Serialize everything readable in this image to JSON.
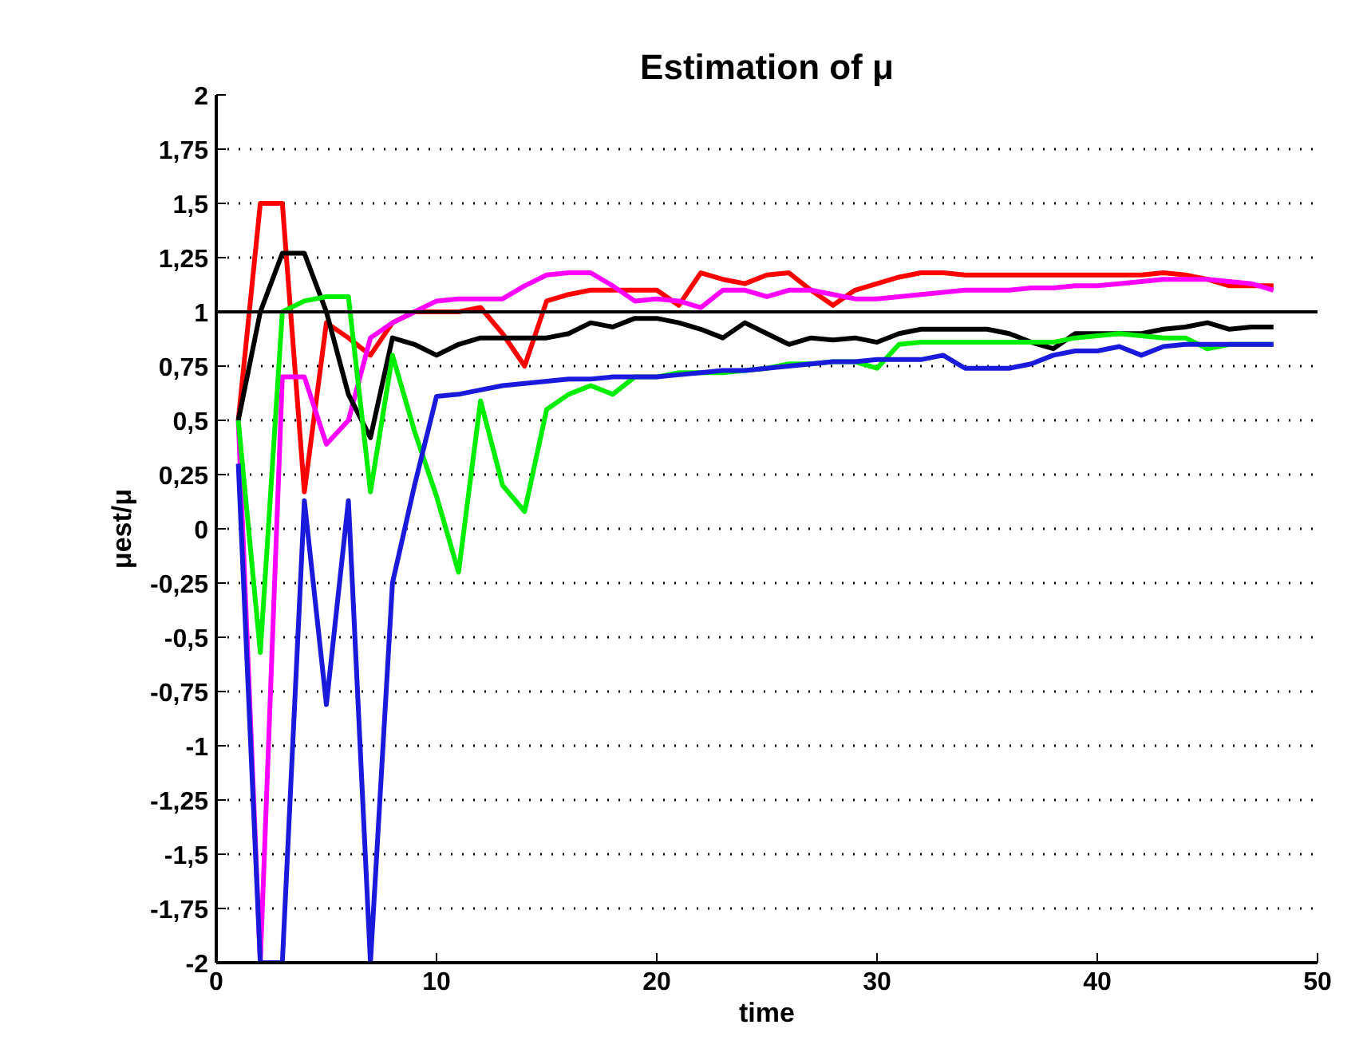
{
  "chart_data": {
    "type": "line",
    "title": "Estimation of μ",
    "xlabel": "time",
    "ylabel": "μest/μ",
    "x": [
      1,
      2,
      3,
      4,
      5,
      6,
      7,
      8,
      9,
      10,
      11,
      12,
      13,
      14,
      15,
      16,
      17,
      18,
      19,
      20,
      21,
      22,
      23,
      24,
      25,
      26,
      27,
      28,
      29,
      30,
      31,
      32,
      33,
      34,
      35,
      36,
      37,
      38,
      39,
      40,
      41,
      42,
      43,
      44,
      45,
      46,
      47,
      48
    ],
    "series": [
      {
        "color": "#ff0000",
        "values": [
          0.5,
          1.5,
          1.5,
          0.17,
          0.95,
          0.88,
          0.8,
          0.95,
          1.0,
          1.0,
          1.0,
          1.02,
          0.9,
          0.75,
          1.05,
          1.08,
          1.1,
          1.1,
          1.1,
          1.1,
          1.03,
          1.18,
          1.15,
          1.13,
          1.17,
          1.18,
          1.1,
          1.03,
          1.1,
          1.13,
          1.16,
          1.18,
          1.18,
          1.17,
          1.17,
          1.17,
          1.17,
          1.17,
          1.17,
          1.17,
          1.17,
          1.17,
          1.18,
          1.17,
          1.15,
          1.12,
          1.12,
          1.12
        ]
      },
      {
        "color": "#ff00ff",
        "values": [
          0.5,
          -2,
          0.7,
          0.7,
          0.39,
          0.5,
          0.88,
          0.95,
          1.0,
          1.05,
          1.06,
          1.06,
          1.06,
          1.12,
          1.17,
          1.18,
          1.18,
          1.12,
          1.05,
          1.06,
          1.05,
          1.02,
          1.1,
          1.1,
          1.07,
          1.1,
          1.1,
          1.08,
          1.06,
          1.06,
          1.07,
          1.08,
          1.09,
          1.1,
          1.1,
          1.1,
          1.11,
          1.11,
          1.12,
          1.12,
          1.13,
          1.14,
          1.15,
          1.15,
          1.15,
          1.14,
          1.13,
          1.1
        ]
      },
      {
        "color": "#000000",
        "values": [
          0.5,
          1.0,
          1.27,
          1.27,
          1.0,
          0.62,
          0.42,
          0.88,
          0.85,
          0.8,
          0.85,
          0.88,
          0.88,
          0.88,
          0.88,
          0.9,
          0.95,
          0.93,
          0.97,
          0.97,
          0.95,
          0.92,
          0.88,
          0.95,
          0.9,
          0.85,
          0.88,
          0.87,
          0.88,
          0.86,
          0.9,
          0.92,
          0.92,
          0.92,
          0.92,
          0.9,
          0.86,
          0.83,
          0.9,
          0.9,
          0.9,
          0.9,
          0.92,
          0.93,
          0.95,
          0.92,
          0.93,
          0.93
        ]
      },
      {
        "color": "#00ee00",
        "values": [
          0.5,
          -0.57,
          1.0,
          1.05,
          1.07,
          1.07,
          0.17,
          0.8,
          0.45,
          0.15,
          -0.2,
          0.59,
          0.2,
          0.08,
          0.55,
          0.62,
          0.66,
          0.62,
          0.7,
          0.7,
          0.72,
          0.72,
          0.72,
          0.73,
          0.74,
          0.76,
          0.76,
          0.77,
          0.77,
          0.74,
          0.85,
          0.86,
          0.86,
          0.86,
          0.86,
          0.86,
          0.86,
          0.86,
          0.88,
          0.89,
          0.9,
          0.89,
          0.88,
          0.88,
          0.83,
          0.85,
          0.85,
          0.85
        ]
      },
      {
        "color": "#1a1adc",
        "values": [
          0.3,
          -2,
          -2,
          0.13,
          -0.81,
          0.13,
          -2,
          -0.25,
          0.2,
          0.61,
          0.62,
          0.64,
          0.66,
          0.67,
          0.68,
          0.69,
          0.69,
          0.7,
          0.7,
          0.7,
          0.71,
          0.72,
          0.73,
          0.73,
          0.74,
          0.75,
          0.76,
          0.77,
          0.77,
          0.78,
          0.78,
          0.78,
          0.8,
          0.74,
          0.74,
          0.74,
          0.76,
          0.8,
          0.82,
          0.82,
          0.84,
          0.8,
          0.84,
          0.85,
          0.85,
          0.85,
          0.85,
          0.85
        ]
      }
    ],
    "xlim": [
      0,
      50
    ],
    "xticks": [
      0,
      10,
      20,
      30,
      40,
      50
    ],
    "ylim": [
      -2,
      2
    ],
    "yticks": [
      2,
      {
        "value": 1.75,
        "label": "1,75"
      },
      {
        "value": 1.5,
        "label": "1,5"
      },
      {
        "value": 1.25,
        "label": "1,25"
      },
      1,
      {
        "value": 0.75,
        "label": "0,75"
      },
      {
        "value": 0.5,
        "label": "0,5"
      },
      {
        "value": 0.25,
        "label": "0,25"
      },
      0,
      {
        "value": -0.25,
        "label": "-0,25"
      },
      {
        "value": -0.5,
        "label": "-0,5"
      },
      {
        "value": -0.75,
        "label": "-0,75"
      },
      -1,
      {
        "value": -1.25,
        "label": "-1,25"
      },
      {
        "value": -1.5,
        "label": "-1,5"
      },
      {
        "value": -1.75,
        "label": "-1,75"
      },
      -2
    ],
    "grid": "y",
    "marker": "none",
    "line_style": "solid",
    "ref_lines": [
      {
        "axis": "y",
        "value": 1,
        "label": null,
        "color": "#000000",
        "line_style": "solid"
      }
    ]
  }
}
